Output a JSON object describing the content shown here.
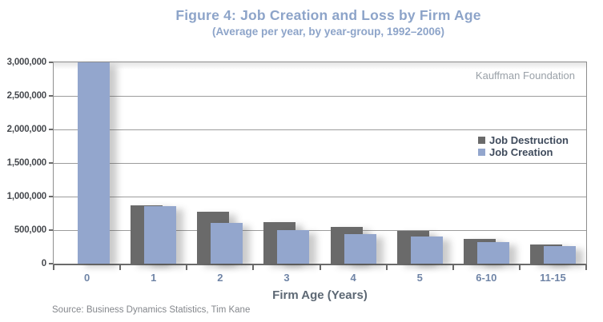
{
  "chart_data": {
    "type": "bar",
    "title": "Figure 4: Job Creation and Loss by Firm Age",
    "subtitle": "(Average per year, by year-group, 1992–2006)",
    "xlabel": "Firm Age (Years)",
    "ylabel": "",
    "categories": [
      "0",
      "1",
      "2",
      "3",
      "4",
      "5",
      "6-10",
      "11-15"
    ],
    "series": [
      {
        "name": "Job Destruction",
        "color": "#6a6a6a",
        "values": [
          0,
          870000,
          775000,
          615000,
          550000,
          490000,
          375000,
          290000
        ]
      },
      {
        "name": "Job Creation",
        "color": "#93a6cd",
        "values": [
          3000000,
          860000,
          610000,
          500000,
          445000,
          410000,
          325000,
          265000
        ]
      }
    ],
    "ylim": [
      0,
      3000000
    ],
    "y_tick_step": 500000,
    "y_tick_labels": [
      "0",
      "500,000",
      "1,000,000",
      "1,500,000",
      "2,000,000",
      "2,500,000",
      "3,000,000"
    ],
    "grid": true,
    "legend_position": "inside-right",
    "bar_overlap": true
  },
  "annotations": {
    "watermark": "Kauffman Foundation",
    "source": "Source: Business Dynamics Statistics, Tim Kane"
  },
  "colors": {
    "title": "#8da4c9",
    "axis_text": "#46494e",
    "x_tick_text": "#6f84a6",
    "xaxis_title_text": "#5d6874",
    "legend_text": "#3f4b5c",
    "watermark_text": "#9aa1a8",
    "source_text": "#84878c",
    "gridline": "#9c9c9c",
    "plot_border": "#8e8e8e",
    "axis_line": "#6b6b6b"
  }
}
